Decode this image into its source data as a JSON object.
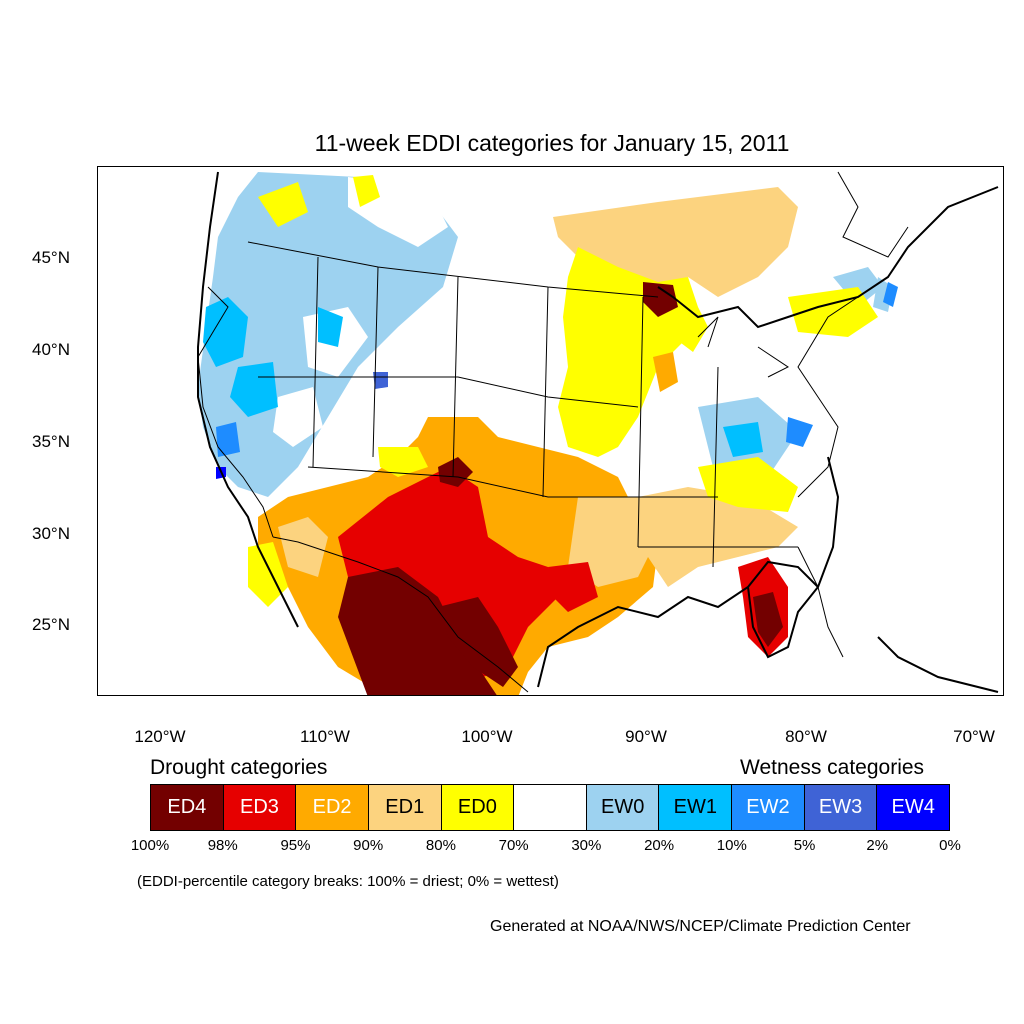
{
  "title": "11-week EDDI categories for January 15, 2011",
  "lat_labels": [
    "45°N",
    "40°N",
    "35°N",
    "30°N",
    "25°N"
  ],
  "lon_labels": [
    "120°W",
    "110°W",
    "100°W",
    "90°W",
    "80°W",
    "70°W"
  ],
  "legend": {
    "drought_heading": "Drought categories",
    "wetness_heading": "Wetness categories",
    "categories": [
      {
        "label": "ED4",
        "color": "#730000",
        "text_color": "#ffffff"
      },
      {
        "label": "ED3",
        "color": "#e60000",
        "text_color": "#ffffff"
      },
      {
        "label": "ED2",
        "color": "#ffaa00",
        "text_color": "#ffffff"
      },
      {
        "label": "ED1",
        "color": "#fcd37f",
        "text_color": "#000000"
      },
      {
        "label": "ED0",
        "color": "#ffff00",
        "text_color": "#000000"
      },
      {
        "label": "",
        "color": "#ffffff",
        "text_color": "#000000"
      },
      {
        "label": "EW0",
        "color": "#9dd2f0",
        "text_color": "#000000"
      },
      {
        "label": "EW1",
        "color": "#00bfff",
        "text_color": "#000000"
      },
      {
        "label": "EW2",
        "color": "#1e8cff",
        "text_color": "#ffffff"
      },
      {
        "label": "EW3",
        "color": "#3f63d6",
        "text_color": "#ffffff"
      },
      {
        "label": "EW4",
        "color": "#0000ff",
        "text_color": "#ffffff"
      }
    ],
    "breaks": [
      "100%",
      "98%",
      "95%",
      "90%",
      "80%",
      "70%",
      "30%",
      "20%",
      "10%",
      "5%",
      "2%",
      "0%"
    ]
  },
  "note": "(EDDI-percentile category breaks: 100% = driest; 0% = wettest)",
  "credit": "Generated at NOAA/NWS/NCEP/Climate Prediction Center"
}
